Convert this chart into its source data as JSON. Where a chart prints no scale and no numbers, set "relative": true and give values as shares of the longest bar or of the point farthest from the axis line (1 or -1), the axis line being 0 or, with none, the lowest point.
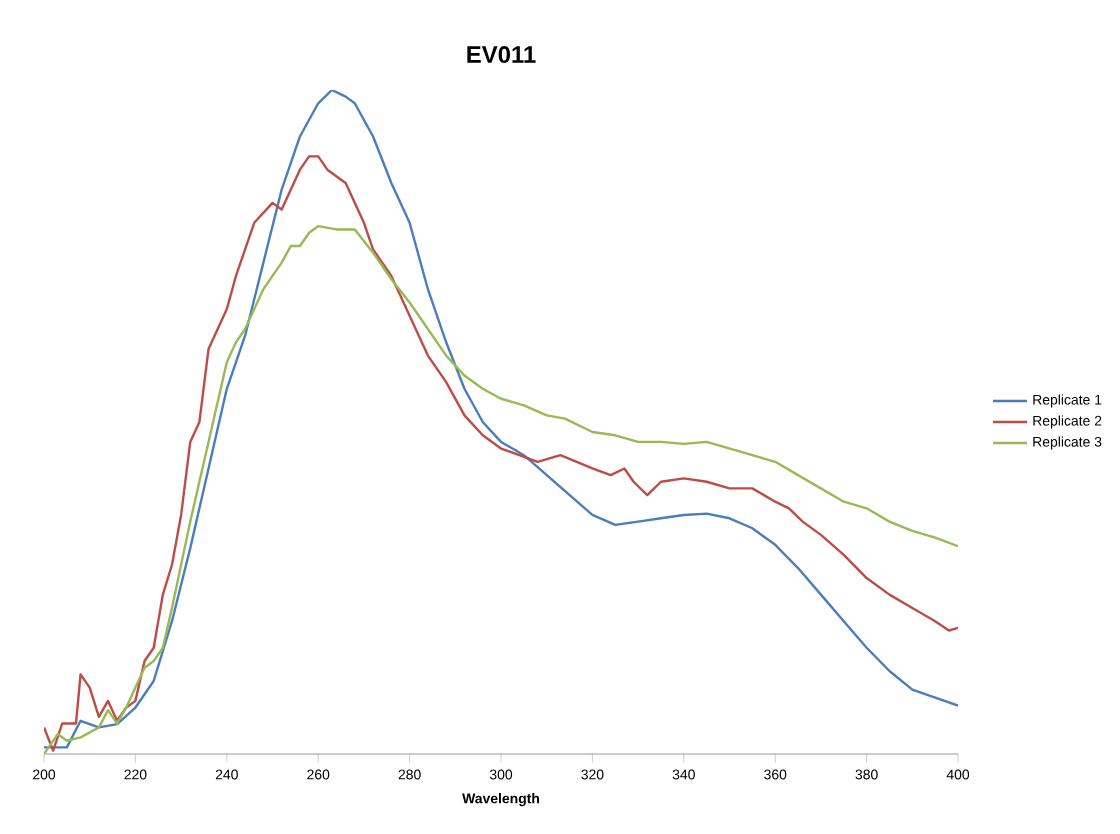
{
  "chart_data": {
    "type": "line",
    "title": "EV011",
    "xlabel": "Wavelength",
    "relative": true,
    "xlim": [
      200,
      400
    ],
    "xticks": [
      200,
      220,
      240,
      260,
      280,
      300,
      320,
      340,
      360,
      380,
      400
    ],
    "legend": "right",
    "grid": false,
    "marker": "none",
    "line_style": "solid",
    "series": [
      {
        "name": "Replicate 1",
        "color": "#4a7ebb",
        "x": [
          200,
          205,
          208,
          212,
          216,
          220,
          224,
          228,
          232,
          236,
          240,
          244,
          248,
          252,
          256,
          260,
          263,
          266,
          268,
          272,
          276,
          280,
          284,
          288,
          292,
          296,
          300,
          305,
          310,
          315,
          320,
          325,
          330,
          335,
          340,
          345,
          350,
          355,
          360,
          365,
          370,
          375,
          380,
          385,
          390,
          395,
          400
        ],
        "values": [
          0.01,
          0.01,
          0.05,
          0.04,
          0.045,
          0.07,
          0.11,
          0.2,
          0.31,
          0.43,
          0.55,
          0.63,
          0.74,
          0.85,
          0.93,
          0.98,
          1,
          0.99,
          0.98,
          0.93,
          0.86,
          0.8,
          0.7,
          0.62,
          0.55,
          0.5,
          0.47,
          0.45,
          0.42,
          0.39,
          0.36,
          0.345,
          0.35,
          0.355,
          0.36,
          0.362,
          0.355,
          0.34,
          0.315,
          0.28,
          0.24,
          0.2,
          0.16,
          0.125,
          0.097,
          0.085,
          0.073
        ]
      },
      {
        "name": "Replicate 2",
        "color": "#be4b48",
        "x": [
          200,
          202,
          204,
          207,
          208,
          210,
          212,
          214,
          216,
          218,
          220,
          222,
          224,
          226,
          228,
          230,
          232,
          234,
          236,
          238,
          240,
          242,
          244,
          246,
          248,
          250,
          252,
          254,
          256,
          258,
          260,
          262,
          264,
          266,
          268,
          270,
          272,
          276,
          280,
          284,
          288,
          292,
          296,
          300,
          304,
          308,
          313,
          320,
          324,
          327,
          329,
          332,
          335,
          340,
          345,
          350,
          355,
          360,
          363,
          366,
          370,
          375,
          380,
          385,
          390,
          395,
          398,
          400
        ],
        "values": [
          0.04,
          0.005,
          0.046,
          0.046,
          0.12,
          0.1,
          0.056,
          0.08,
          0.05,
          0.07,
          0.08,
          0.14,
          0.16,
          0.24,
          0.285,
          0.36,
          0.47,
          0.5,
          0.61,
          0.64,
          0.67,
          0.72,
          0.76,
          0.8,
          0.815,
          0.83,
          0.82,
          0.85,
          0.88,
          0.9,
          0.9,
          0.88,
          0.87,
          0.86,
          0.83,
          0.8,
          0.76,
          0.72,
          0.66,
          0.6,
          0.56,
          0.51,
          0.48,
          0.46,
          0.45,
          0.44,
          0.45,
          0.43,
          0.42,
          0.43,
          0.41,
          0.39,
          0.41,
          0.415,
          0.41,
          0.4,
          0.4,
          0.38,
          0.37,
          0.35,
          0.33,
          0.3,
          0.265,
          0.24,
          0.22,
          0.2,
          0.186,
          0.19
        ]
      },
      {
        "name": "Replicate 3",
        "color": "#98b954",
        "x": [
          200,
          203,
          205,
          208,
          212,
          214,
          216,
          218,
          220,
          222,
          224,
          226,
          228,
          230,
          232,
          234,
          236,
          238,
          240,
          242,
          244,
          246,
          248,
          250,
          252,
          254,
          256,
          258,
          260,
          264,
          268,
          272,
          276,
          280,
          284,
          288,
          292,
          296,
          300,
          305,
          310,
          314,
          320,
          325,
          330,
          335,
          340,
          345,
          350,
          355,
          360,
          365,
          370,
          375,
          380,
          385,
          390,
          395,
          400
        ],
        "values": [
          0,
          0.03,
          0.02,
          0.025,
          0.04,
          0.066,
          0.046,
          0.07,
          0.1,
          0.13,
          0.14,
          0.16,
          0.22,
          0.285,
          0.35,
          0.41,
          0.47,
          0.53,
          0.59,
          0.62,
          0.64,
          0.67,
          0.7,
          0.72,
          0.74,
          0.765,
          0.765,
          0.785,
          0.795,
          0.79,
          0.79,
          0.755,
          0.715,
          0.68,
          0.64,
          0.6,
          0.57,
          0.55,
          0.535,
          0.525,
          0.51,
          0.505,
          0.485,
          0.48,
          0.47,
          0.47,
          0.467,
          0.47,
          0.46,
          0.45,
          0.44,
          0.42,
          0.4,
          0.38,
          0.37,
          0.35,
          0.336,
          0.326,
          0.313
        ]
      }
    ]
  }
}
